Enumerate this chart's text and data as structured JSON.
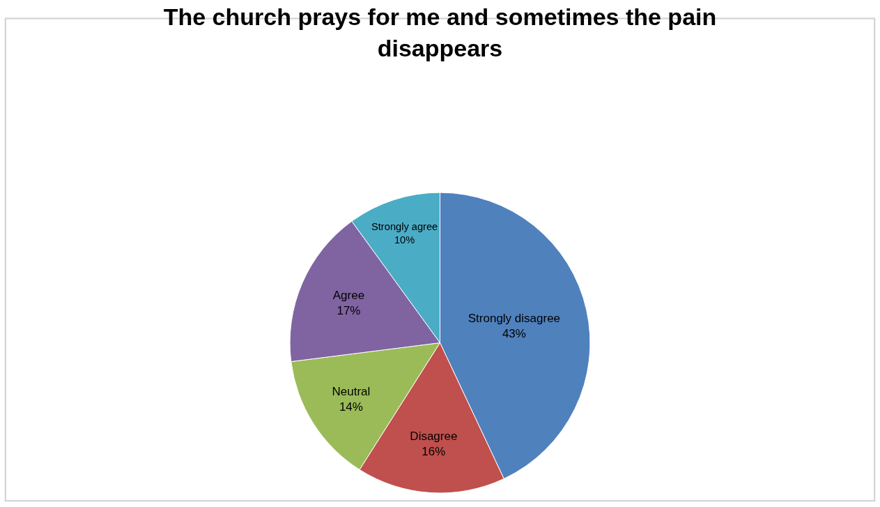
{
  "chart_data": {
    "type": "pie",
    "title": "The church prays for me and sometimes the pain disappears",
    "categories": [
      "Strongly disagree",
      "Disagree",
      "Neutral",
      "Agree",
      "Strongly agree"
    ],
    "values": [
      43,
      16,
      14,
      17,
      10
    ],
    "value_labels": [
      "43%",
      "16%",
      "14%",
      "17%",
      "10%"
    ],
    "colors": [
      "#4f81bd",
      "#c0504d",
      "#9bbb59",
      "#8064a2",
      "#4bacc6"
    ],
    "legend": false
  }
}
